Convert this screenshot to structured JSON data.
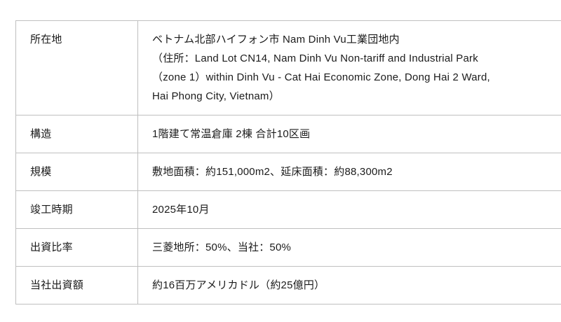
{
  "table": {
    "colors": {
      "border": "#bfbfbf",
      "text": "#1b1b1b",
      "background": "#ffffff"
    },
    "rows": [
      {
        "label": "所在地",
        "value": "ベトナム北部ハイフォン市 Nam Dinh Vu工業団地内\n（住所：Land Lot CN14, Nam Dinh Vu Non-tariff and Industrial Park\n（zone 1）within Dinh Vu - Cat Hai Economic Zone, Dong Hai 2 Ward,\nHai Phong City, Vietnam）"
      },
      {
        "label": "構造",
        "value": "1階建て常温倉庫 2棟 合計10区画"
      },
      {
        "label": "規模",
        "value": "敷地面積：約151,000m2、延床面積：約88,300m2"
      },
      {
        "label": "竣工時期",
        "value": "2025年10月"
      },
      {
        "label": "出資比率",
        "value": "三菱地所：50%、当社：50%"
      },
      {
        "label": "当社出資額",
        "value": "約16百万アメリカドル（約25億円）"
      }
    ]
  }
}
